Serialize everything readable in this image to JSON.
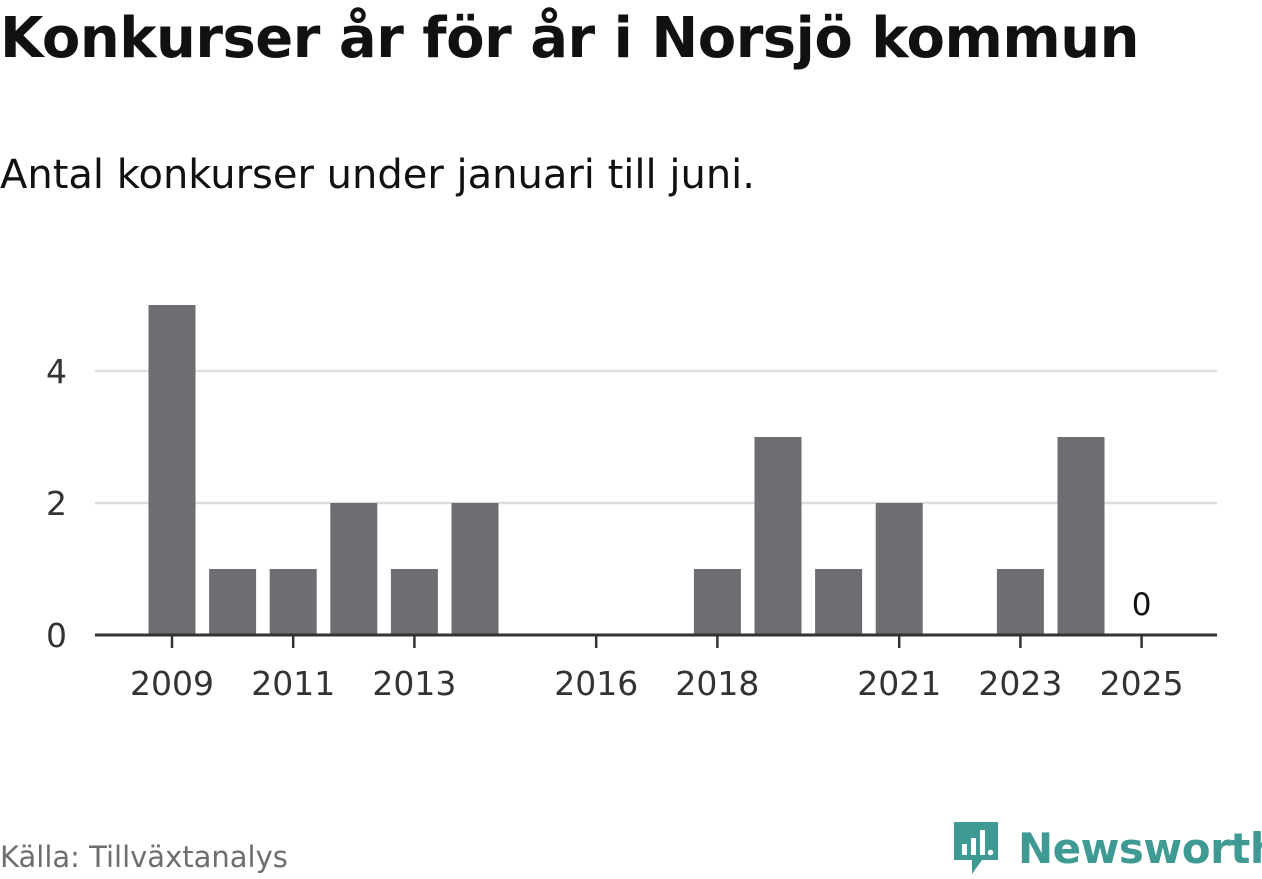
{
  "title": "Konkurser år för år i Norsjö kommun",
  "subtitle": "Antal konkurser under januari till juni.",
  "source": "Källa: Tillväxtanalys",
  "brand": {
    "name": "Newsworthy",
    "icon": "newsworthy-logo-icon",
    "color": "#3e9a93"
  },
  "chart_data": {
    "type": "bar",
    "x": [
      2009,
      2010,
      2011,
      2012,
      2013,
      2014,
      2015,
      2016,
      2017,
      2018,
      2019,
      2020,
      2021,
      2022,
      2023,
      2024,
      2025
    ],
    "values": [
      5,
      1,
      1,
      2,
      1,
      2,
      0,
      0,
      0,
      1,
      3,
      1,
      2,
      0,
      1,
      3,
      0
    ],
    "x_tick_labels": [
      "2009",
      "2011",
      "2013",
      "2016",
      "2018",
      "2021",
      "2023",
      "2025"
    ],
    "y_ticks": [
      "0",
      "2",
      "4"
    ],
    "ylim": [
      0,
      5
    ],
    "annotations": [
      {
        "x": 2025,
        "text": "0"
      }
    ],
    "grid": true,
    "bar_color": "#6e6d72"
  }
}
